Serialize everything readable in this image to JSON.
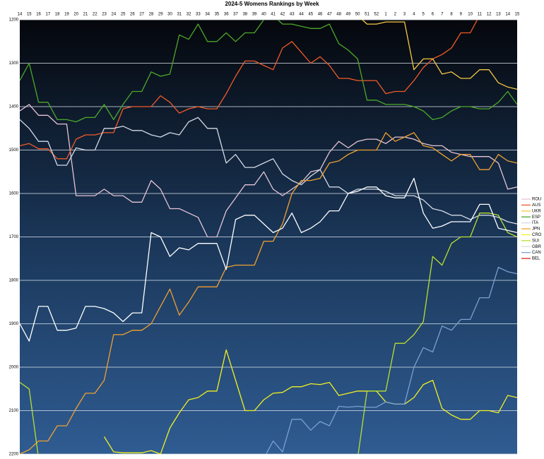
{
  "chart_data": {
    "type": "line",
    "title": "2024-5 Womens Rankings by Week",
    "categories": [
      "14",
      "15",
      "16",
      "17",
      "18",
      "19",
      "20",
      "21",
      "22",
      "23",
      "24",
      "25",
      "26",
      "27",
      "28",
      "29",
      "30",
      "31",
      "32",
      "33",
      "34",
      "35",
      "36",
      "37",
      "38",
      "39",
      "40",
      "41",
      "42",
      "43",
      "44",
      "45",
      "46",
      "47",
      "48",
      "49",
      "50",
      "51",
      "52",
      "1",
      "2",
      "3",
      "4",
      "5",
      "6",
      "7",
      "8",
      "9",
      "10",
      "11",
      "12",
      "13",
      "14",
      "15"
    ],
    "ylim": [
      2200,
      1200
    ],
    "yticks": [
      1200,
      1300,
      1400,
      1500,
      1600,
      1700,
      1800,
      1900,
      2000,
      2100,
      2200
    ],
    "grid": true,
    "legend": "right",
    "series": [
      {
        "name": "ROU",
        "color": "#e6c4d6",
        "values": [
          1410,
          1395,
          1420,
          1420,
          1440,
          1440,
          1605,
          1605,
          1605,
          1590,
          1605,
          1605,
          1620,
          1620,
          1570,
          1590,
          1635,
          1635,
          1645,
          1655,
          1700,
          1700,
          1640,
          1610,
          1580,
          1580,
          1550,
          1590,
          1605,
          1590,
          1575,
          1550,
          1545,
          1505,
          1480,
          1495,
          1480,
          1475,
          1475,
          1485,
          1470,
          1470,
          1475,
          1485,
          1490,
          1490,
          1505,
          1510,
          1515,
          1515,
          1515,
          1530,
          1590,
          1585
        ]
      },
      {
        "name": "AUS",
        "color": "#f05a28",
        "values": [
          1490,
          1485,
          1497,
          1497,
          1520,
          1520,
          1475,
          1465,
          1465,
          1460,
          1460,
          1405,
          1400,
          1400,
          1400,
          1375,
          1390,
          1415,
          1405,
          1400,
          1405,
          1405,
          1370,
          1330,
          1295,
          1295,
          1305,
          1315,
          1265,
          1250,
          1275,
          1300,
          1285,
          1305,
          1335,
          1335,
          1340,
          1340,
          1340,
          1370,
          1365,
          1365,
          1340,
          1310,
          1290,
          1280,
          1265,
          1230,
          1230,
          1190,
          null,
          null,
          null,
          null
        ]
      },
      {
        "name": "UKR",
        "color": "#f5c842",
        "values": [
          null,
          null,
          null,
          null,
          null,
          null,
          null,
          null,
          null,
          null,
          null,
          null,
          null,
          null,
          null,
          null,
          null,
          null,
          null,
          null,
          null,
          null,
          null,
          null,
          null,
          null,
          null,
          null,
          null,
          null,
          null,
          null,
          null,
          null,
          null,
          null,
          1190,
          1210,
          1210,
          1205,
          1205,
          1205,
          1315,
          1290,
          1290,
          1325,
          1320,
          1335,
          1335,
          1315,
          1315,
          1345,
          1355,
          1360
        ]
      },
      {
        "name": "ESP",
        "color": "#4ca82a",
        "values": [
          1340,
          1300,
          1390,
          1390,
          1430,
          1430,
          1435,
          1425,
          1425,
          1395,
          1430,
          1395,
          1365,
          1365,
          1320,
          1330,
          1325,
          1235,
          1245,
          1210,
          1250,
          1250,
          1230,
          1250,
          1230,
          1230,
          1200,
          1190,
          1210,
          1210,
          1215,
          1220,
          1220,
          1210,
          1255,
          1270,
          1290,
          1385,
          1385,
          1395,
          1395,
          1395,
          1400,
          1410,
          1430,
          1425,
          1410,
          1400,
          1400,
          1405,
          1405,
          1390,
          1365,
          1395
        ]
      },
      {
        "name": "ITA",
        "color": "#d4dae6",
        "values": [
          1430,
          1450,
          1480,
          1480,
          1535,
          1535,
          1495,
          1500,
          1500,
          1450,
          1450,
          1445,
          1455,
          1455,
          1465,
          1470,
          1460,
          1465,
          1435,
          1425,
          1450,
          1450,
          1530,
          1510,
          1540,
          1540,
          1530,
          1520,
          1555,
          1570,
          1580,
          1560,
          1545,
          1585,
          1585,
          1600,
          1590,
          1590,
          1590,
          1595,
          1605,
          1605,
          1605,
          1615,
          1635,
          1640,
          1650,
          1650,
          1660,
          1650,
          1650,
          1655,
          1665,
          1670
        ]
      },
      {
        "name": "JPN",
        "color": "#f0a030",
        "values": [
          2200,
          2190,
          2170,
          2170,
          2135,
          2135,
          2095,
          2060,
          2060,
          2030,
          1925,
          1925,
          1915,
          1915,
          1900,
          1860,
          1820,
          1880,
          1850,
          1815,
          1815,
          1815,
          1770,
          1765,
          1765,
          1765,
          1710,
          1710,
          1670,
          1600,
          1570,
          1570,
          1565,
          1530,
          1525,
          1510,
          1500,
          1500,
          1500,
          1460,
          1480,
          1470,
          1460,
          1490,
          1495,
          1510,
          1525,
          1510,
          1510,
          1545,
          1545,
          1510,
          1525,
          1530
        ]
      },
      {
        "name": "CRO",
        "color": "#f2f020",
        "values": [
          null,
          null,
          null,
          null,
          null,
          null,
          null,
          null,
          null,
          2160,
          2195,
          2197,
          2197,
          2197,
          2192,
          2200,
          2140,
          2105,
          2075,
          2070,
          2055,
          2055,
          1960,
          2030,
          2100,
          2100,
          2075,
          2060,
          2058,
          2045,
          2045,
          2038,
          2040,
          2035,
          2065,
          2060,
          2055,
          2055,
          2055,
          2080,
          2085,
          2085,
          2070,
          2040,
          2030,
          2095,
          2110,
          2120,
          2120,
          2100,
          2100,
          2105,
          2065,
          2070
        ]
      },
      {
        "name": "SUI",
        "color": "#b8e030",
        "values": [
          2035,
          2050,
          2210,
          null,
          null,
          null,
          null,
          null,
          null,
          null,
          null,
          null,
          null,
          null,
          null,
          null,
          null,
          null,
          null,
          null,
          null,
          null,
          null,
          null,
          null,
          null,
          null,
          null,
          null,
          null,
          null,
          null,
          null,
          null,
          null,
          null,
          2210,
          2055,
          2055,
          2055,
          1945,
          1945,
          1925,
          1895,
          1745,
          1765,
          1715,
          1700,
          1700,
          1645,
          1645,
          1650,
          1690,
          1700
        ]
      },
      {
        "name": "GBR",
        "color": "#ffffff",
        "values": [
          1900,
          1940,
          1860,
          1860,
          1915,
          1915,
          1910,
          1860,
          1860,
          1865,
          1875,
          1895,
          1875,
          1875,
          1690,
          1700,
          1745,
          1725,
          1730,
          1715,
          1715,
          1715,
          1775,
          1660,
          1650,
          1650,
          1670,
          1690,
          1680,
          1645,
          1690,
          1680,
          1665,
          1640,
          1640,
          1600,
          1595,
          1585,
          1585,
          1605,
          1610,
          1610,
          1565,
          1645,
          1680,
          1675,
          1665,
          1665,
          1665,
          1625,
          1625,
          1680,
          1685,
          1690
        ]
      },
      {
        "name": "CAN",
        "color": "#7ba0d0",
        "values": [
          null,
          null,
          null,
          null,
          null,
          null,
          null,
          null,
          null,
          null,
          null,
          null,
          null,
          null,
          null,
          null,
          null,
          null,
          null,
          null,
          null,
          null,
          null,
          null,
          null,
          null,
          2210,
          2170,
          2195,
          2120,
          2120,
          2145,
          2125,
          2135,
          2090,
          2092,
          2090,
          2092,
          2092,
          2080,
          2085,
          2085,
          2000,
          1955,
          1965,
          1905,
          1915,
          1890,
          1890,
          1840,
          1840,
          1770,
          1780,
          1785
        ]
      },
      {
        "name": "BEL",
        "color": "#e02020",
        "values": [
          null,
          null,
          null,
          null,
          null,
          null,
          null,
          null,
          null,
          null,
          null,
          null,
          null,
          null,
          null,
          null,
          null,
          null,
          null,
          null,
          null,
          null,
          null,
          null,
          null,
          null,
          null,
          null,
          null,
          null,
          null,
          null,
          null,
          null,
          null,
          null,
          null,
          null,
          null,
          null,
          null,
          null,
          null,
          null,
          null,
          null,
          null,
          null,
          null,
          null,
          null,
          null,
          null,
          null
        ]
      }
    ]
  }
}
